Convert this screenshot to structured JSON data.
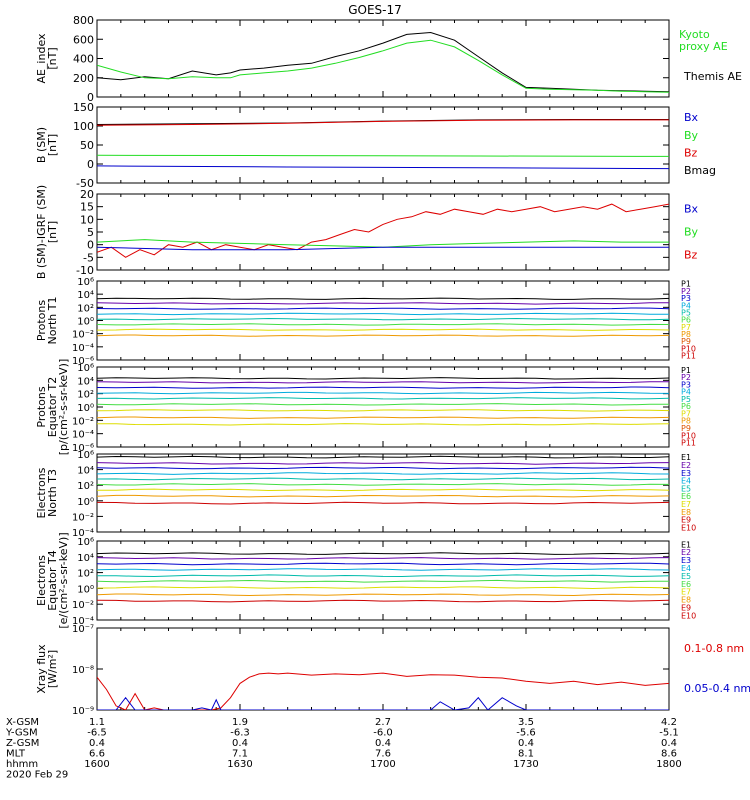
{
  "title": "GOES-17",
  "colors": {
    "black": "#000000",
    "red": "#dd0000",
    "green": "#22dd22",
    "blue": "#0000cc",
    "purple": "#6600aa",
    "cyan": "#00aadd",
    "teal": "#00bbaa",
    "lime": "#44dd44",
    "yellow": "#dddd00",
    "orange": "#ee9900",
    "darkorange": "#dd5500",
    "maroon": "#cc0000"
  },
  "x_axis": {
    "rows": [
      {
        "label": "X-GSM",
        "values": [
          "1.1",
          "1.9",
          "2.7",
          "3.5",
          "4.2"
        ]
      },
      {
        "label": "Y-GSM",
        "values": [
          "-6.5",
          "-6.3",
          "-6.0",
          "-5.6",
          "-5.1"
        ]
      },
      {
        "label": "Z-GSM",
        "values": [
          "0.4",
          "0.4",
          "0.4",
          "0.4",
          "0.4"
        ]
      },
      {
        "label": "MLT",
        "values": [
          "6.6",
          "7.1",
          "7.6",
          "8.1",
          "8.6"
        ]
      },
      {
        "label": "hhmm",
        "values": [
          "1600",
          "1630",
          "1700",
          "1730",
          "1800"
        ]
      }
    ],
    "date": "2020 Feb 29"
  },
  "chart_data": [
    {
      "type": "line",
      "ylabel": [
        "AE_index",
        "[nT]"
      ],
      "ylim": [
        0,
        800
      ],
      "yticks": [
        "0",
        "200",
        "400",
        "600",
        "800"
      ],
      "xlim": [
        0,
        120
      ],
      "legend": [
        {
          "text": "Kyoto",
          "color": "#22dd22"
        },
        {
          "text": "proxy AE",
          "color": "#22dd22"
        },
        {
          "text": "Themis AE",
          "color": "#000000"
        }
      ],
      "series": [
        {
          "name": "Themis AE",
          "color": "#000000",
          "x": [
            0,
            5,
            10,
            15,
            20,
            25,
            28,
            30,
            35,
            40,
            45,
            50,
            55,
            60,
            65,
            70,
            75,
            80,
            85,
            90,
            95,
            100,
            105,
            110,
            115,
            120
          ],
          "y": [
            200,
            180,
            210,
            190,
            270,
            230,
            250,
            280,
            300,
            330,
            350,
            420,
            480,
            560,
            650,
            670,
            590,
            420,
            250,
            100,
            90,
            80,
            70,
            65,
            60,
            55
          ]
        },
        {
          "name": "Kyoto proxy AE",
          "color": "#22dd22",
          "x": [
            0,
            5,
            10,
            15,
            20,
            25,
            28,
            30,
            35,
            40,
            45,
            50,
            55,
            60,
            65,
            70,
            75,
            80,
            85,
            90,
            95,
            100,
            105,
            110,
            115,
            120
          ],
          "y": [
            330,
            260,
            200,
            190,
            210,
            200,
            200,
            230,
            250,
            270,
            300,
            350,
            410,
            480,
            560,
            590,
            520,
            380,
            230,
            90,
            80,
            75,
            70,
            60,
            55,
            50
          ]
        }
      ]
    },
    {
      "type": "line",
      "ylabel": [
        "B (SM)",
        "[nT]"
      ],
      "ylim": [
        -50,
        150
      ],
      "yticks": [
        "-50",
        "0",
        "50",
        "100",
        "150"
      ],
      "xlim": [
        0,
        120
      ],
      "legend": [
        {
          "text": "Bx",
          "color": "#0000cc"
        },
        {
          "text": "By",
          "color": "#22dd22"
        },
        {
          "text": "Bz",
          "color": "#dd0000"
        },
        {
          "text": "Bmag",
          "color": "#000000"
        }
      ],
      "series": [
        {
          "name": "Bmag",
          "color": "#000000",
          "x": [
            0,
            20,
            40,
            60,
            80,
            100,
            120
          ],
          "y": [
            104,
            106,
            108,
            113,
            116,
            117,
            117
          ]
        },
        {
          "name": "Bz",
          "color": "#dd0000",
          "x": [
            0,
            20,
            40,
            60,
            80,
            100,
            120
          ],
          "y": [
            102,
            104,
            107,
            112,
            115,
            116,
            116
          ]
        },
        {
          "name": "By",
          "color": "#22dd22",
          "x": [
            0,
            40,
            80,
            120
          ],
          "y": [
            23,
            22,
            21,
            20
          ]
        },
        {
          "name": "Bx",
          "color": "#0000cc",
          "x": [
            0,
            40,
            80,
            120
          ],
          "y": [
            -5,
            -8,
            -10,
            -12
          ]
        }
      ]
    },
    {
      "type": "line",
      "ylabel": [
        "B (SM)-IGRF (SM)",
        "[nT]"
      ],
      "ylim": [
        -10,
        20
      ],
      "yticks": [
        "-10",
        "-5",
        "0",
        "5",
        "10",
        "15",
        "20"
      ],
      "xlim": [
        0,
        120
      ],
      "legend": [
        {
          "text": "Bx",
          "color": "#0000cc"
        },
        {
          "text": "By",
          "color": "#22dd22"
        },
        {
          "text": "Bz",
          "color": "#dd0000"
        }
      ],
      "series": [
        {
          "name": "Bz",
          "color": "#dd0000",
          "x": [
            0,
            3,
            6,
            9,
            12,
            15,
            18,
            21,
            24,
            27,
            30,
            33,
            36,
            39,
            42,
            45,
            48,
            51,
            54,
            57,
            60,
            63,
            66,
            69,
            72,
            75,
            78,
            81,
            84,
            87,
            90,
            93,
            96,
            99,
            102,
            105,
            108,
            111,
            114,
            117,
            120
          ],
          "y": [
            -3,
            -1,
            -5,
            -2,
            -4,
            0,
            -1,
            1,
            -2,
            0,
            -1,
            -2,
            0,
            -1,
            -2,
            1,
            2,
            4,
            6,
            5,
            8,
            10,
            11,
            13,
            12,
            14,
            13,
            12,
            14,
            13,
            14,
            15,
            13,
            14,
            15,
            14,
            16,
            13,
            14,
            15,
            16
          ]
        },
        {
          "name": "By",
          "color": "#22dd22",
          "x": [
            0,
            10,
            20,
            30,
            40,
            50,
            60,
            70,
            80,
            90,
            100,
            110,
            120
          ],
          "y": [
            1,
            2,
            1,
            0.5,
            0,
            -0.5,
            -1,
            0,
            0.5,
            1,
            1.5,
            1,
            1
          ]
        },
        {
          "name": "Bx",
          "color": "#0000cc",
          "x": [
            0,
            20,
            40,
            60,
            80,
            100,
            120
          ],
          "y": [
            -1,
            -2,
            -2,
            -1,
            -1,
            -1,
            -1
          ]
        }
      ]
    },
    {
      "type": "line",
      "log": true,
      "ylabel": [
        "Protons",
        "North T1"
      ],
      "ylim_exp": [
        -6,
        6
      ],
      "ytick_exps": [
        -6,
        -4,
        -2,
        0,
        2,
        4,
        6
      ],
      "xlim": [
        0,
        120
      ],
      "legend": [
        {
          "text": "P1",
          "color": "#000000"
        },
        {
          "text": "P2",
          "color": "#6600aa"
        },
        {
          "text": "P3",
          "color": "#0000cc"
        },
        {
          "text": "P4",
          "color": "#00aadd"
        },
        {
          "text": "P5",
          "color": "#00bbaa"
        },
        {
          "text": "P6",
          "color": "#44dd44"
        },
        {
          "text": "P7",
          "color": "#dddd00"
        },
        {
          "text": "P8",
          "color": "#ee9900"
        },
        {
          "text": "P9",
          "color": "#dd5500"
        },
        {
          "text": "P10",
          "color": "#cc0000"
        },
        {
          "text": "P11",
          "color": "#cc0000"
        }
      ],
      "series": [
        {
          "name": "P1",
          "color": "#000000",
          "level": 3.3
        },
        {
          "name": "P2",
          "color": "#6600aa",
          "level": 2.6
        },
        {
          "name": "P3",
          "color": "#0000cc",
          "level": 1.8
        },
        {
          "name": "P4",
          "color": "#00aadd",
          "level": 1.0
        },
        {
          "name": "P5",
          "color": "#00bbaa",
          "level": 0.2
        },
        {
          "name": "P6",
          "color": "#44dd44",
          "level": -0.6
        },
        {
          "name": "P7",
          "color": "#dddd00",
          "level": -1.4
        },
        {
          "name": "P8",
          "color": "#ee9900",
          "level": -2.3
        }
      ]
    },
    {
      "type": "line",
      "log": true,
      "ylabel": [
        "Protons",
        "Equator T2",
        "[p/(cm²-s-sr-keV)]"
      ],
      "ylim_exp": [
        -6,
        6
      ],
      "ytick_exps": [
        -6,
        -4,
        -2,
        0,
        2,
        4,
        6
      ],
      "xlim": [
        0,
        120
      ],
      "legend": [
        {
          "text": "P1",
          "color": "#000000"
        },
        {
          "text": "P2",
          "color": "#6600aa"
        },
        {
          "text": "P3",
          "color": "#0000cc"
        },
        {
          "text": "P4",
          "color": "#00aadd"
        },
        {
          "text": "P5",
          "color": "#00bbaa"
        },
        {
          "text": "P6",
          "color": "#44dd44"
        },
        {
          "text": "P7",
          "color": "#dddd00"
        },
        {
          "text": "P8",
          "color": "#ee9900"
        },
        {
          "text": "P9",
          "color": "#dd5500"
        },
        {
          "text": "P10",
          "color": "#cc0000"
        },
        {
          "text": "P11",
          "color": "#cc0000"
        }
      ],
      "series": [
        {
          "name": "P1",
          "color": "#000000",
          "level": 4.3
        },
        {
          "name": "P2",
          "color": "#6600aa",
          "level": 3.7
        },
        {
          "name": "P3",
          "color": "#0000cc",
          "level": 2.9
        },
        {
          "name": "P4",
          "color": "#00aadd",
          "level": 2.1
        },
        {
          "name": "P5",
          "color": "#00bbaa",
          "level": 1.3
        },
        {
          "name": "P6",
          "color": "#44dd44",
          "level": 0.4
        },
        {
          "name": "P7",
          "color": "#dddd00",
          "level": -0.5
        },
        {
          "name": "P8",
          "color": "#ee9900",
          "level": -1.6
        },
        {
          "name": "P9",
          "color": "#dddd00",
          "level": -2.6
        }
      ]
    },
    {
      "type": "line",
      "log": true,
      "ylabel": [
        "Electrons",
        "North T3"
      ],
      "ylim_exp": [
        -4,
        6
      ],
      "ytick_exps": [
        -4,
        -2,
        0,
        2,
        4,
        6
      ],
      "xlim": [
        0,
        120
      ],
      "legend": [
        {
          "text": "E1",
          "color": "#000000"
        },
        {
          "text": "E2",
          "color": "#6600aa"
        },
        {
          "text": "E3",
          "color": "#0000cc"
        },
        {
          "text": "E4",
          "color": "#00aadd"
        },
        {
          "text": "E5",
          "color": "#00bbaa"
        },
        {
          "text": "E6",
          "color": "#44dd44"
        },
        {
          "text": "E7",
          "color": "#dddd00"
        },
        {
          "text": "E8",
          "color": "#ee9900"
        },
        {
          "text": "E9",
          "color": "#cc0000"
        },
        {
          "text": "E10",
          "color": "#cc0000"
        }
      ],
      "series": [
        {
          "name": "E1",
          "color": "#000000",
          "level": 5.6
        },
        {
          "name": "E2",
          "color": "#6600aa",
          "level": 4.8
        },
        {
          "name": "E3",
          "color": "#0000cc",
          "level": 4.2
        },
        {
          "name": "E4",
          "color": "#00aadd",
          "level": 3.5
        },
        {
          "name": "E5",
          "color": "#00bbaa",
          "level": 2.8
        },
        {
          "name": "E6",
          "color": "#44dd44",
          "level": 2.1
        },
        {
          "name": "E7",
          "color": "#dddd00",
          "level": 1.4
        },
        {
          "name": "E8",
          "color": "#ee9900",
          "level": 0.6
        },
        {
          "name": "E9",
          "color": "#cc0000",
          "level": -0.3
        }
      ]
    },
    {
      "type": "line",
      "log": true,
      "ylabel": [
        "Electrons",
        "Equator T4",
        "[e/(cm²-s-sr-keV)]"
      ],
      "ylim_exp": [
        -4,
        6
      ],
      "ytick_exps": [
        -4,
        -2,
        0,
        2,
        4,
        6
      ],
      "xlim": [
        0,
        120
      ],
      "legend": [
        {
          "text": "E1",
          "color": "#000000"
        },
        {
          "text": "E2",
          "color": "#6600aa"
        },
        {
          "text": "E3",
          "color": "#0000cc"
        },
        {
          "text": "E4",
          "color": "#00aadd"
        },
        {
          "text": "E5",
          "color": "#00bbaa"
        },
        {
          "text": "E6",
          "color": "#44dd44"
        },
        {
          "text": "E7",
          "color": "#dddd00"
        },
        {
          "text": "E8",
          "color": "#ee9900"
        },
        {
          "text": "E9",
          "color": "#cc0000"
        },
        {
          "text": "E10",
          "color": "#cc0000"
        }
      ],
      "series": [
        {
          "name": "E1",
          "color": "#000000",
          "level": 4.4
        },
        {
          "name": "E2",
          "color": "#6600aa",
          "level": 3.8
        },
        {
          "name": "E3",
          "color": "#0000cc",
          "level": 3.1
        },
        {
          "name": "E4",
          "color": "#00aadd",
          "level": 2.4
        },
        {
          "name": "E5",
          "color": "#00bbaa",
          "level": 1.6
        },
        {
          "name": "E6",
          "color": "#44dd44",
          "level": 0.9
        },
        {
          "name": "E7",
          "color": "#dddd00",
          "level": 0.1
        },
        {
          "name": "E8",
          "color": "#ee9900",
          "level": -0.8
        },
        {
          "name": "E9",
          "color": "#cc0000",
          "level": -1.6
        }
      ]
    },
    {
      "type": "line",
      "log": true,
      "ylabel": [
        "Xray flux",
        "[W/m²]"
      ],
      "ylim_exp": [
        -9,
        -7
      ],
      "ytick_exps": [
        -9,
        -8,
        -7
      ],
      "xlim": [
        0,
        120
      ],
      "legend": [
        {
          "text": "0.1-0.8 nm",
          "color": "#dd0000"
        },
        {
          "text": "0.05-0.4 nm",
          "color": "#0000cc"
        }
      ],
      "series": [
        {
          "name": "0.1-0.8 nm",
          "color": "#dd0000",
          "x": [
            0,
            2,
            4,
            6,
            8,
            10,
            12,
            14,
            16,
            18,
            20,
            22,
            24,
            26,
            28,
            30,
            32,
            34,
            36,
            38,
            40,
            45,
            50,
            55,
            60,
            65,
            70,
            75,
            80,
            85,
            90,
            95,
            100,
            105,
            110,
            115,
            120
          ],
          "y": [
            -8.2,
            -8.5,
            -8.9,
            -9,
            -8.6,
            -9,
            -8.95,
            -9,
            -9,
            -9,
            -9,
            -9,
            -9,
            -8.95,
            -8.7,
            -8.35,
            -8.2,
            -8.12,
            -8.1,
            -8.12,
            -8.1,
            -8.15,
            -8.12,
            -8.14,
            -8.1,
            -8.18,
            -8.14,
            -8.15,
            -8.2,
            -8.22,
            -8.3,
            -8.35,
            -8.3,
            -8.38,
            -8.32,
            -8.4,
            -8.35
          ]
        },
        {
          "name": "0.05-0.4 nm",
          "color": "#0000cc",
          "x": [
            0,
            4,
            6,
            8,
            10,
            15,
            20,
            22,
            24,
            25,
            26,
            30,
            35,
            40,
            45,
            50,
            55,
            60,
            65,
            70,
            72,
            75,
            78,
            80,
            82,
            85,
            88,
            90,
            92,
            95,
            98,
            100,
            105,
            110,
            115,
            120
          ],
          "y": [
            -9,
            -9,
            -8.7,
            -9,
            -9,
            -9,
            -9,
            -8.95,
            -9,
            -8.75,
            -9,
            -9,
            -9,
            -9,
            -9,
            -9,
            -9,
            -9,
            -9,
            -9,
            -8.8,
            -9,
            -8.95,
            -8.7,
            -9,
            -8.7,
            -8.9,
            -9,
            -9,
            -9,
            -9,
            -9,
            -9,
            -9,
            -9,
            -9
          ]
        }
      ]
    }
  ]
}
